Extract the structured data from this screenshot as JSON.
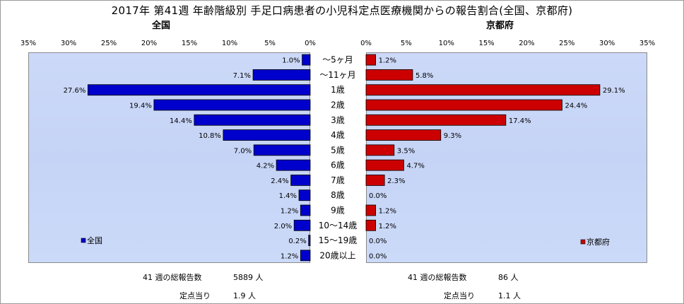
{
  "title": "2017年 第41週 年齢階級別 手足口病患者の小児科定点医療機関からの報告割合(全国、京都府)",
  "left_subtitle": "全国",
  "right_subtitle": "京都府",
  "colors": {
    "national": "#0000cc",
    "kyoto": "#cc0000"
  },
  "chart_data": [
    {
      "type": "bar",
      "orientation": "horizontal",
      "direction": "reversed",
      "subtitle": "全国",
      "categories": [
        "～5ヶ月",
        "～11ヶ月",
        "1歳",
        "2歳",
        "3歳",
        "4歳",
        "5歳",
        "6歳",
        "7歳",
        "8歳",
        "9歳",
        "10～14歳",
        "15～19歳",
        "20歳以上"
      ],
      "series": [
        {
          "name": "全国",
          "values": [
            1.0,
            7.1,
            27.6,
            19.4,
            14.4,
            10.8,
            7.0,
            4.2,
            2.4,
            1.4,
            1.2,
            2.0,
            0.2,
            1.2
          ]
        }
      ],
      "value_labels": [
        "1.0%",
        "7.1%",
        "27.6%",
        "19.4%",
        "14.4%",
        "10.8%",
        "7.0%",
        "4.2%",
        "2.4%",
        "1.4%",
        "1.2%",
        "2.0%",
        "0.2%",
        "1.2%"
      ],
      "xlim": [
        0,
        35
      ],
      "xticks": [
        "0%",
        "5%",
        "10%",
        "15%",
        "20%",
        "25%",
        "30%",
        "35%"
      ],
      "legend": "bottom-left"
    },
    {
      "type": "bar",
      "orientation": "horizontal",
      "subtitle": "京都府",
      "categories": [
        "～5ヶ月",
        "～11ヶ月",
        "1歳",
        "2歳",
        "3歳",
        "4歳",
        "5歳",
        "6歳",
        "7歳",
        "8歳",
        "9歳",
        "10～14歳",
        "15～19歳",
        "20歳以上"
      ],
      "series": [
        {
          "name": "京都府",
          "values": [
            1.2,
            5.8,
            29.1,
            24.4,
            17.4,
            9.3,
            3.5,
            4.7,
            2.3,
            0.0,
            1.2,
            1.2,
            0.0,
            0.0
          ]
        }
      ],
      "value_labels": [
        "1.2%",
        "5.8%",
        "29.1%",
        "24.4%",
        "17.4%",
        "9.3%",
        "3.5%",
        "4.7%",
        "2.3%",
        "0.0%",
        "1.2%",
        "1.2%",
        "0.0%",
        "0.0%"
      ],
      "xlim": [
        0,
        35
      ],
      "xticks": [
        "0%",
        "5%",
        "10%",
        "15%",
        "20%",
        "25%",
        "30%",
        "35%"
      ],
      "legend": "bottom-right"
    }
  ],
  "footer": {
    "left_total_label": "41 週の総報告数",
    "left_total_value": "5889 人",
    "left_per_label": "定点当り",
    "left_per_value": "1.9 人",
    "right_total_label": "41 週の総報告数",
    "right_total_value": "86 人",
    "right_per_label": "定点当り",
    "right_per_value": "1.1 人"
  }
}
